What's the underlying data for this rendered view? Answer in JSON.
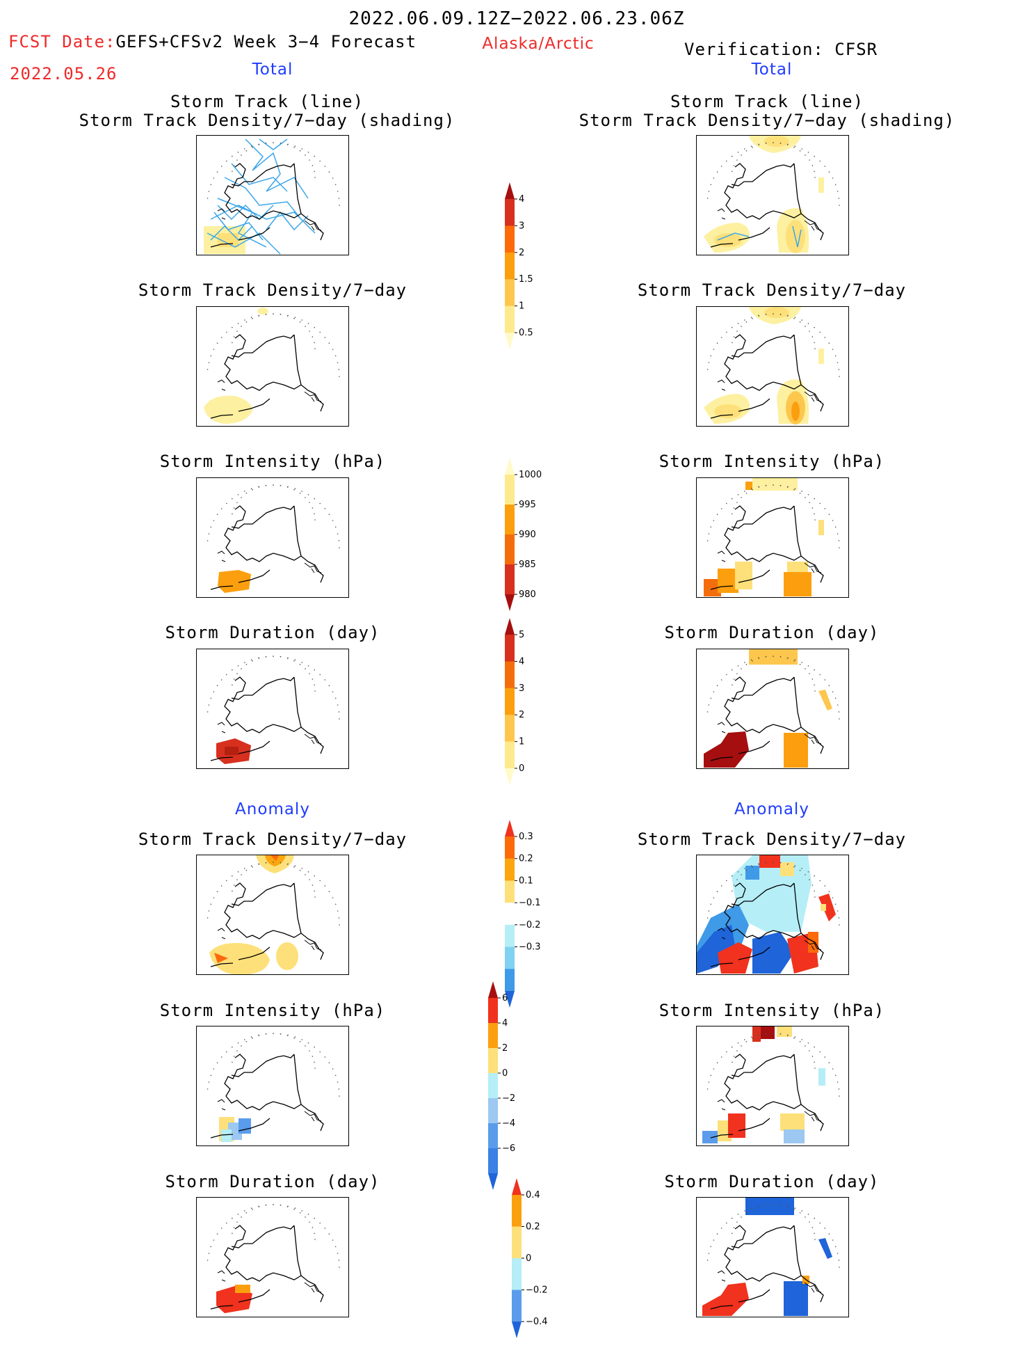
{
  "header": {
    "date_range": "2022.06.09.12Z−2022.06.23.06Z",
    "fcst_label": "FCST Date:",
    "fcst_model": "GEFS+CFSv2 Week 3−4 Forecast",
    "fcst_date": "2022.05.26",
    "region": "Alaska/Arctic",
    "verification": "Verification: CFSR",
    "left_section": "Total",
    "right_section": "Total"
  },
  "sections": {
    "anomaly_left": "Anomaly",
    "anomaly_right": "Anomaly"
  },
  "panels": {
    "track_title_1": "Storm Track (line)",
    "track_title_2": "Storm Track Density/7−day (shading)",
    "density": "Storm Track Density/7−day",
    "intensity": "Storm Intensity (hPa)",
    "duration": "Storm Duration (day)"
  },
  "colorbars": {
    "density_total": {
      "labels": [
        "4",
        "3",
        "2",
        "1.5",
        "1",
        "0.5"
      ],
      "colors": [
        "#a50f0f",
        "#d7301f",
        "#fc6a0a",
        "#fc9f0e",
        "#fdc74e",
        "#feea8e",
        "#fffac8"
      ]
    },
    "intensity_total": {
      "labels": [
        "1000",
        "995",
        "990",
        "985",
        "980"
      ],
      "colors": [
        "#fffac8",
        "#feea8e",
        "#fc9f0e",
        "#f46d0c",
        "#d7301f",
        "#a50f0f"
      ]
    },
    "duration_total": {
      "labels": [
        "5",
        "4",
        "3",
        "2",
        "1",
        "0"
      ],
      "colors": [
        "#a50f0f",
        "#d7301f",
        "#f46d0c",
        "#fc9f0e",
        "#fdc74e",
        "#feea8e",
        "#fffac8"
      ]
    },
    "density_anom": {
      "labels": [
        "0.3",
        "0.2",
        "0.1",
        "−0.1",
        "−0.2",
        "−0.3"
      ],
      "colors": [
        "#f0321e",
        "#fc6a0a",
        "#fca50e",
        "#fde07a",
        "#ffffff",
        "#b5eef6",
        "#7fd2f2",
        "#3f9ae8",
        "#1f64d8"
      ]
    },
    "intensity_anom": {
      "labels": [
        "6",
        "4",
        "2",
        "0",
        "−2",
        "−4",
        "−6"
      ],
      "colors": [
        "#a50f0f",
        "#f0321e",
        "#fc9f0e",
        "#fde07a",
        "#b5eef6",
        "#9cc8f2",
        "#5a9ceb",
        "#3b80e4",
        "#1f64d8"
      ]
    },
    "duration_anom": {
      "labels": [
        "0.4",
        "0.2",
        "0",
        "−0.2",
        "−0.4"
      ],
      "colors": [
        "#f0321e",
        "#fc9f0e",
        "#fde07a",
        "#b5eef6",
        "#5a9ceb",
        "#1f64d8"
      ]
    }
  }
}
